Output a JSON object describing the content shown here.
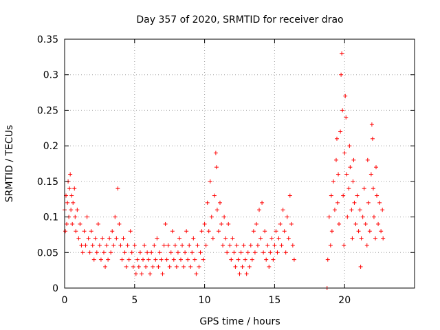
{
  "chart_data": {
    "type": "scatter",
    "title": "Day 357 of 2020, SRMTID for receiver drao",
    "xlabel": "GPS time / hours",
    "ylabel": "SRMTID / TECUs",
    "xlim": [
      0,
      25
    ],
    "ylim": [
      0,
      0.35
    ],
    "xticks": [
      0,
      5,
      10,
      15,
      20
    ],
    "xtick_labels": [
      "0",
      "5",
      "10",
      "15",
      "20"
    ],
    "yticks": [
      0,
      0.05,
      0.1,
      0.15,
      0.2,
      0.25,
      0.3,
      0.35
    ],
    "ytick_labels": [
      "0",
      "0.05",
      "0.1",
      "0.15",
      "0.2",
      "0.25",
      "0.3",
      "0.35"
    ],
    "grid": true,
    "marker": "plus",
    "color": "#ff0000",
    "series": [
      {
        "name": "SRMTID",
        "points": [
          [
            0.0,
            0.11
          ],
          [
            0.05,
            0.08
          ],
          [
            0.1,
            0.13
          ],
          [
            0.15,
            0.09
          ],
          [
            0.2,
            0.12
          ],
          [
            0.25,
            0.15
          ],
          [
            0.3,
            0.1
          ],
          [
            0.35,
            0.14
          ],
          [
            0.4,
            0.16
          ],
          [
            0.45,
            0.11
          ],
          [
            0.5,
            0.13
          ],
          [
            0.55,
            0.09
          ],
          [
            0.6,
            0.12
          ],
          [
            0.7,
            0.14
          ],
          [
            0.75,
            0.1
          ],
          [
            0.8,
            0.08
          ],
          [
            0.9,
            0.11
          ],
          [
            1.0,
            0.07
          ],
          [
            1.1,
            0.09
          ],
          [
            1.2,
            0.06
          ],
          [
            1.3,
            0.05
          ],
          [
            1.4,
            0.08
          ],
          [
            1.5,
            0.06
          ],
          [
            1.6,
            0.1
          ],
          [
            1.7,
            0.07
          ],
          [
            1.8,
            0.05
          ],
          [
            1.9,
            0.08
          ],
          [
            2.0,
            0.06
          ],
          [
            2.1,
            0.04
          ],
          [
            2.2,
            0.07
          ],
          [
            2.3,
            0.05
          ],
          [
            2.4,
            0.09
          ],
          [
            2.5,
            0.06
          ],
          [
            2.6,
            0.04
          ],
          [
            2.7,
            0.07
          ],
          [
            2.8,
            0.05
          ],
          [
            2.9,
            0.03
          ],
          [
            3.0,
            0.06
          ],
          [
            3.1,
            0.04
          ],
          [
            3.2,
            0.07
          ],
          [
            3.3,
            0.05
          ],
          [
            3.4,
            0.08
          ],
          [
            3.5,
            0.06
          ],
          [
            3.6,
            0.1
          ],
          [
            3.7,
            0.07
          ],
          [
            3.8,
            0.14
          ],
          [
            3.9,
            0.09
          ],
          [
            4.0,
            0.06
          ],
          [
            4.1,
            0.04
          ],
          [
            4.2,
            0.07
          ],
          [
            4.3,
            0.05
          ],
          [
            4.4,
            0.03
          ],
          [
            4.5,
            0.06
          ],
          [
            4.6,
            0.04
          ],
          [
            4.7,
            0.08
          ],
          [
            4.8,
            0.05
          ],
          [
            4.9,
            0.03
          ],
          [
            5.0,
            0.06
          ],
          [
            5.1,
            0.02
          ],
          [
            5.2,
            0.04
          ],
          [
            5.3,
            0.03
          ],
          [
            5.4,
            0.05
          ],
          [
            5.5,
            0.02
          ],
          [
            5.6,
            0.04
          ],
          [
            5.7,
            0.06
          ],
          [
            5.8,
            0.03
          ],
          [
            5.9,
            0.05
          ],
          [
            6.0,
            0.04
          ],
          [
            6.1,
            0.02
          ],
          [
            6.2,
            0.05
          ],
          [
            6.3,
            0.03
          ],
          [
            6.4,
            0.06
          ],
          [
            6.5,
            0.04
          ],
          [
            6.6,
            0.07
          ],
          [
            6.7,
            0.03
          ],
          [
            6.8,
            0.05
          ],
          [
            6.9,
            0.04
          ],
          [
            7.0,
            0.02
          ],
          [
            7.1,
            0.06
          ],
          [
            7.2,
            0.09
          ],
          [
            7.3,
            0.04
          ],
          [
            7.4,
            0.06
          ],
          [
            7.5,
            0.03
          ],
          [
            7.6,
            0.05
          ],
          [
            7.7,
            0.08
          ],
          [
            7.8,
            0.04
          ],
          [
            7.9,
            0.06
          ],
          [
            8.0,
            0.03
          ],
          [
            8.1,
            0.05
          ],
          [
            8.2,
            0.07
          ],
          [
            8.3,
            0.04
          ],
          [
            8.4,
            0.06
          ],
          [
            8.5,
            0.03
          ],
          [
            8.6,
            0.05
          ],
          [
            8.7,
            0.08
          ],
          [
            8.8,
            0.04
          ],
          [
            8.9,
            0.06
          ],
          [
            9.0,
            0.03
          ],
          [
            9.1,
            0.05
          ],
          [
            9.2,
            0.07
          ],
          [
            9.3,
            0.04
          ],
          [
            9.4,
            0.02
          ],
          [
            9.5,
            0.06
          ],
          [
            9.6,
            0.03
          ],
          [
            9.7,
            0.05
          ],
          [
            9.8,
            0.08
          ],
          [
            9.9,
            0.04
          ],
          [
            10.0,
            0.09
          ],
          [
            10.1,
            0.06
          ],
          [
            10.2,
            0.12
          ],
          [
            10.3,
            0.08
          ],
          [
            10.4,
            0.15
          ],
          [
            10.5,
            0.1
          ],
          [
            10.6,
            0.07
          ],
          [
            10.7,
            0.13
          ],
          [
            10.8,
            0.19
          ],
          [
            10.85,
            0.17
          ],
          [
            10.9,
            0.11
          ],
          [
            11.0,
            0.08
          ],
          [
            11.1,
            0.12
          ],
          [
            11.2,
            0.09
          ],
          [
            11.3,
            0.06
          ],
          [
            11.4,
            0.1
          ],
          [
            11.5,
            0.07
          ],
          [
            11.6,
            0.05
          ],
          [
            11.7,
            0.09
          ],
          [
            11.8,
            0.06
          ],
          [
            11.9,
            0.04
          ],
          [
            12.0,
            0.07
          ],
          [
            12.1,
            0.05
          ],
          [
            12.2,
            0.03
          ],
          [
            12.3,
            0.06
          ],
          [
            12.4,
            0.04
          ],
          [
            12.5,
            0.02
          ],
          [
            12.6,
            0.05
          ],
          [
            12.7,
            0.03
          ],
          [
            12.8,
            0.06
          ],
          [
            12.9,
            0.04
          ],
          [
            13.0,
            0.02
          ],
          [
            13.1,
            0.05
          ],
          [
            13.2,
            0.03
          ],
          [
            13.3,
            0.06
          ],
          [
            13.4,
            0.04
          ],
          [
            13.5,
            0.08
          ],
          [
            13.6,
            0.05
          ],
          [
            13.7,
            0.09
          ],
          [
            13.8,
            0.06
          ],
          [
            13.9,
            0.11
          ],
          [
            14.0,
            0.07
          ],
          [
            14.1,
            0.12
          ],
          [
            14.2,
            0.05
          ],
          [
            14.3,
            0.08
          ],
          [
            14.4,
            0.04
          ],
          [
            14.5,
            0.06
          ],
          [
            14.6,
            0.03
          ],
          [
            14.7,
            0.05
          ],
          [
            14.8,
            0.07
          ],
          [
            14.9,
            0.04
          ],
          [
            15.0,
            0.06
          ],
          [
            15.1,
            0.08
          ],
          [
            15.2,
            0.05
          ],
          [
            15.3,
            0.07
          ],
          [
            15.4,
            0.09
          ],
          [
            15.5,
            0.06
          ],
          [
            15.6,
            0.11
          ],
          [
            15.7,
            0.08
          ],
          [
            15.8,
            0.05
          ],
          [
            15.9,
            0.1
          ],
          [
            16.0,
            0.07
          ],
          [
            16.1,
            0.13
          ],
          [
            16.2,
            0.09
          ],
          [
            16.3,
            0.06
          ],
          [
            16.4,
            0.04
          ],
          [
            18.75,
            0.0
          ],
          [
            18.8,
            0.04
          ],
          [
            18.9,
            0.1
          ],
          [
            19.0,
            0.06
          ],
          [
            19.05,
            0.13
          ],
          [
            19.1,
            0.08
          ],
          [
            19.2,
            0.15
          ],
          [
            19.3,
            0.11
          ],
          [
            19.4,
            0.18
          ],
          [
            19.45,
            0.21
          ],
          [
            19.5,
            0.12
          ],
          [
            19.55,
            0.16
          ],
          [
            19.6,
            0.09
          ],
          [
            19.7,
            0.22
          ],
          [
            19.75,
            0.3
          ],
          [
            19.8,
            0.33
          ],
          [
            19.85,
            0.25
          ],
          [
            19.9,
            0.13
          ],
          [
            19.95,
            0.06
          ],
          [
            20.0,
            0.19
          ],
          [
            20.05,
            0.27
          ],
          [
            20.1,
            0.24
          ],
          [
            20.15,
            0.16
          ],
          [
            20.2,
            0.1
          ],
          [
            20.3,
            0.14
          ],
          [
            20.35,
            0.2
          ],
          [
            20.4,
            0.17
          ],
          [
            20.5,
            0.11
          ],
          [
            20.55,
            0.07
          ],
          [
            20.6,
            0.15
          ],
          [
            20.65,
            0.18
          ],
          [
            20.7,
            0.12
          ],
          [
            20.8,
            0.09
          ],
          [
            20.9,
            0.13
          ],
          [
            21.0,
            0.08
          ],
          [
            21.1,
            0.11
          ],
          [
            21.15,
            0.03
          ],
          [
            21.2,
            0.07
          ],
          [
            21.3,
            0.1
          ],
          [
            21.4,
            0.14
          ],
          [
            21.5,
            0.09
          ],
          [
            21.6,
            0.06
          ],
          [
            21.65,
            0.18
          ],
          [
            21.7,
            0.12
          ],
          [
            21.8,
            0.08
          ],
          [
            21.9,
            0.16
          ],
          [
            21.95,
            0.23
          ],
          [
            22.0,
            0.21
          ],
          [
            22.05,
            0.14
          ],
          [
            22.1,
            0.1
          ],
          [
            22.2,
            0.07
          ],
          [
            22.25,
            0.17
          ],
          [
            22.3,
            0.13
          ],
          [
            22.4,
            0.09
          ],
          [
            22.5,
            0.12
          ],
          [
            22.6,
            0.08
          ],
          [
            22.7,
            0.11
          ],
          [
            22.75,
            0.07
          ]
        ]
      }
    ]
  }
}
